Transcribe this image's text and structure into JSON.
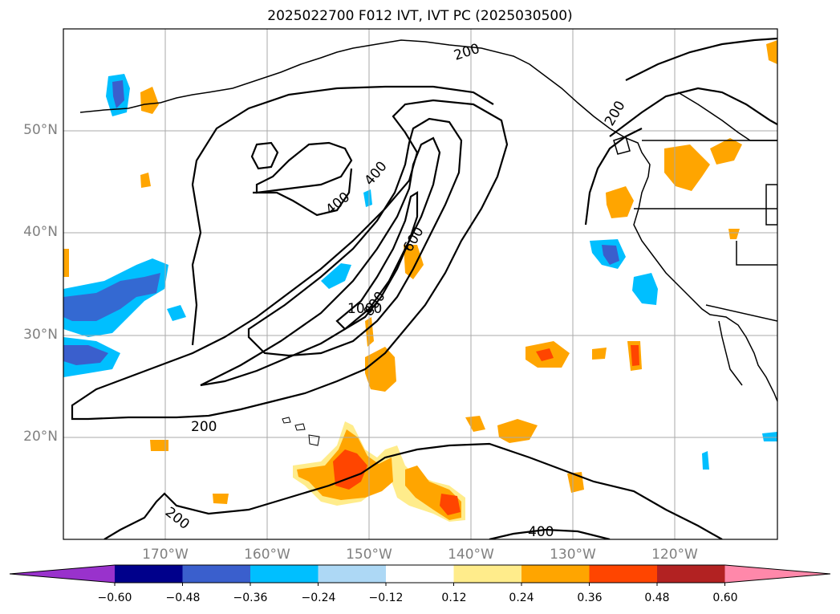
{
  "title": "2025022700 F012 IVT, IVT PC (2025030500)",
  "lat_labels": [
    "50°N",
    "40°N",
    "30°N",
    "20°N"
  ],
  "lon_labels": [
    "170°W",
    "160°W",
    "150°W",
    "140°W",
    "130°W",
    "120°W"
  ],
  "contour_labels": [
    "200",
    "200",
    "400",
    "400",
    "600",
    "800",
    "1000",
    "200",
    "200",
    "400"
  ],
  "colorbar": {
    "ticks": [
      "−0.60",
      "−0.48",
      "−0.36",
      "−0.24",
      "−0.12",
      "0.12",
      "0.24",
      "0.36",
      "0.48",
      "0.60"
    ],
    "colors": [
      "#9932cc",
      "#00008b",
      "#3a5fcd",
      "#00bfff",
      "#add8f5",
      "#ffffff",
      "#ffec8b",
      "#ffa500",
      "#ff4500",
      "#b22222",
      "#ff88aa"
    ]
  }
}
